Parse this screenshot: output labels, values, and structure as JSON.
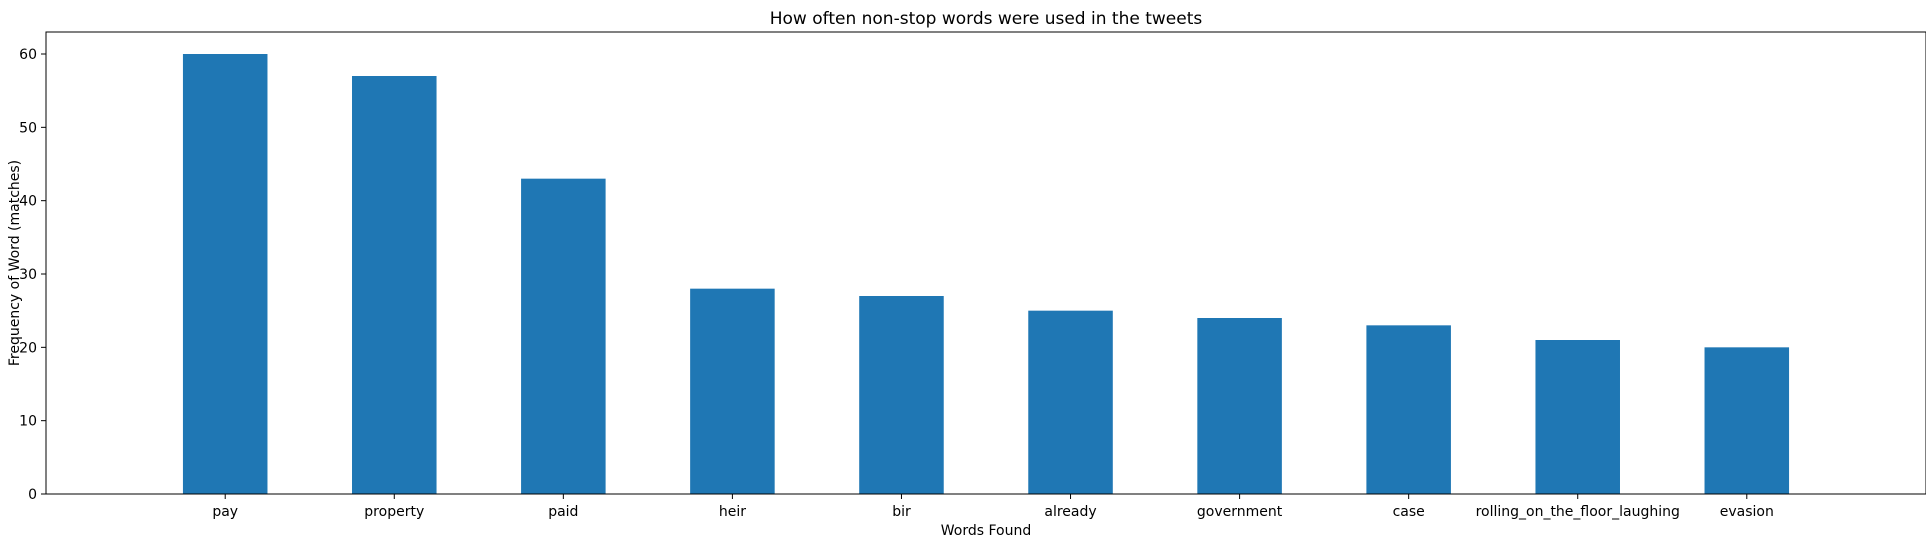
{
  "chart_data": {
    "type": "bar",
    "title": "How often non-stop words were used in the tweets",
    "xlabel": "Words Found",
    "ylabel": "Frequency of Word (matches)",
    "categories": [
      "pay",
      "property",
      "paid",
      "heir",
      "bir",
      "already",
      "government",
      "case",
      "rolling_on_the_floor_laughing",
      "evasion"
    ],
    "values": [
      60,
      57,
      43,
      28,
      27,
      25,
      24,
      23,
      21,
      20
    ],
    "ylim": [
      0,
      63
    ],
    "yticks": [
      0,
      10,
      20,
      30,
      40,
      50,
      60
    ],
    "grid": false,
    "bar_color": "#1f77b4"
  }
}
